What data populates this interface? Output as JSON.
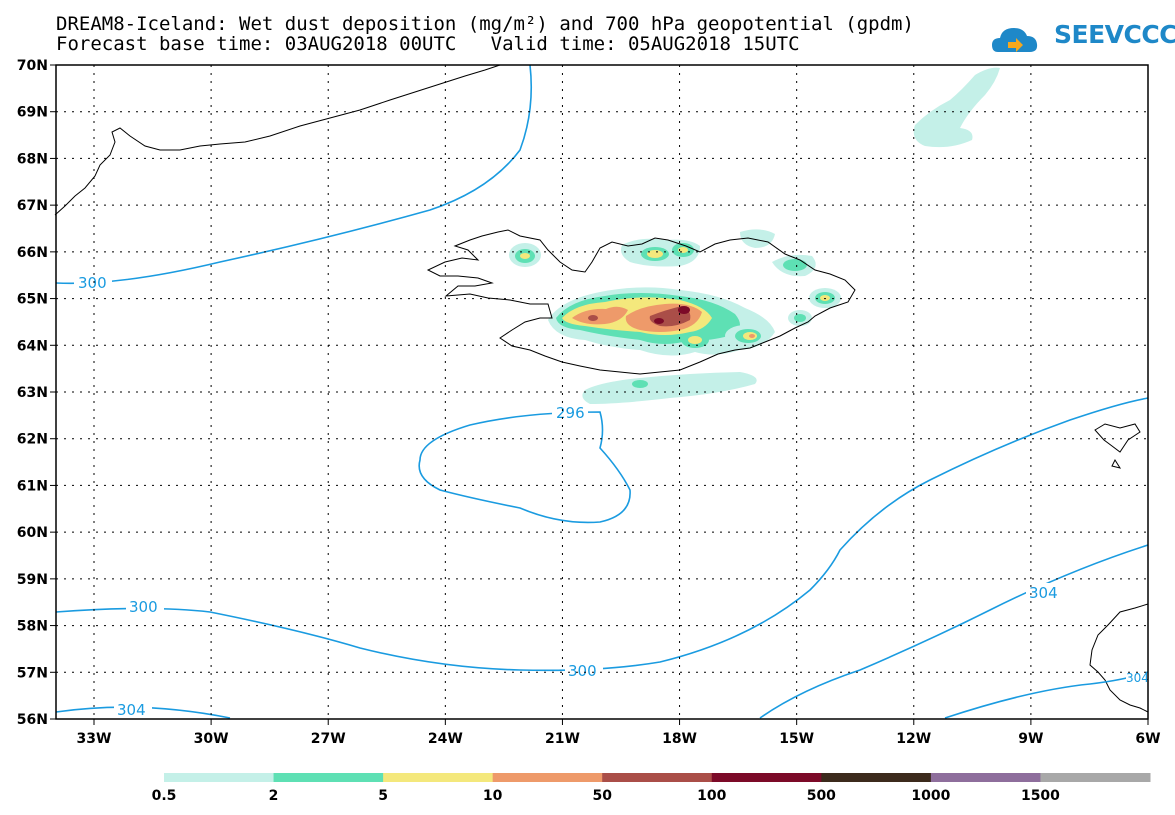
{
  "title_line1": "DREAM8-Iceland: Wet dust deposition (mg/m²) and 700 hPa geopotential (gpdm)",
  "title_line2": "Forecast base time: 03AUG2018 00UTC   Valid time: 05AUG2018 15UTC",
  "logo_text": "SEEVCCC",
  "lat_labels": [
    "70N",
    "69N",
    "68N",
    "67N",
    "66N",
    "65N",
    "64N",
    "63N",
    "62N",
    "61N",
    "60N",
    "59N",
    "58N",
    "57N",
    "56N"
  ],
  "lon_labels": [
    "33W",
    "30W",
    "27W",
    "24W",
    "21W",
    "18W",
    "15W",
    "12W",
    "9W",
    "6W"
  ],
  "contour_labels": [
    "300",
    "296",
    "300",
    "300",
    "304",
    "304",
    "304"
  ],
  "colorbar": {
    "colors": [
      "#c4f0e8",
      "#5ee0b4",
      "#f4e87c",
      "#ee9a6a",
      "#aa4e48",
      "#7c0a28",
      "#3c2a1c",
      "#8e6e9c",
      "#a8a8a8"
    ],
    "labels": [
      "0.5",
      "2",
      "5",
      "10",
      "50",
      "100",
      "500",
      "1000",
      "1500"
    ]
  },
  "colors": {
    "contour": "#1a9be0",
    "coast": "#000000"
  }
}
